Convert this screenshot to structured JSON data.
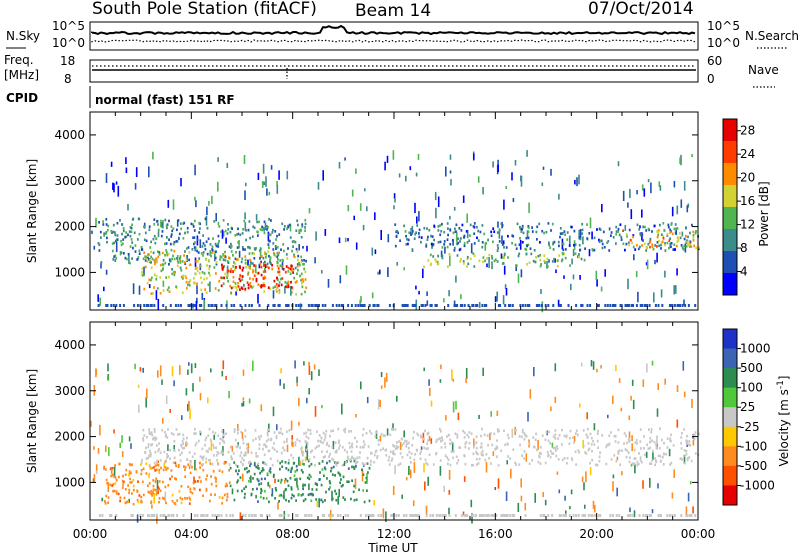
{
  "header": {
    "station": "South Pole Station (fitACF)",
    "beam": "Beam 14",
    "date": "07/Oct/2014",
    "cpid_label": "CPID",
    "cpid_value": "normal (fast) 151 RF"
  },
  "nsky_panel": {
    "left_label": "N.Sky",
    "right_label": "N.Search",
    "ticks": [
      "10^5",
      "10^0"
    ],
    "right_ticks": [
      "10^5",
      "10^0"
    ]
  },
  "freq_panel": {
    "left_label_line1": "Freq.",
    "left_label_line2": "[MHz]",
    "left_ticks": [
      "18",
      "8"
    ],
    "right_label": "Nave",
    "right_ticks": [
      "60",
      "0"
    ]
  },
  "chart_data": [
    {
      "type": "heatmap",
      "quantity": "Power",
      "ylabel": "Slant Range [km]",
      "xlabel": "",
      "x_range_hours": [
        0,
        24
      ],
      "ylim": [
        180,
        4500
      ],
      "yticks": [
        "1000",
        "2000",
        "3000",
        "4000"
      ],
      "colorbar_label": "Power [dB]",
      "colorbar_ticks": [
        "4",
        "8",
        "12",
        "16",
        "20",
        "24",
        "28"
      ],
      "colorbar_range": [
        0,
        30
      ],
      "colorscale": [
        "#0000ff",
        "#1e50b4",
        "#3c8c8c",
        "#50b450",
        "#d2d232",
        "#ff8c00",
        "#ff3c00",
        "#e60000"
      ],
      "regions": [
        {
          "t": [
            0.3,
            8.5
          ],
          "r": [
            1200,
            2200
          ],
          "value": 9
        },
        {
          "t": [
            2.0,
            8.5
          ],
          "r": [
            550,
            1500
          ],
          "value": 16
        },
        {
          "t": [
            5.0,
            8.0
          ],
          "r": [
            650,
            1200
          ],
          "value": 28
        },
        {
          "t": [
            12.0,
            24.0
          ],
          "r": [
            1500,
            2100
          ],
          "value": 8
        },
        {
          "t": [
            13.0,
            19.5
          ],
          "r": [
            1150,
            1450
          ],
          "value": 14
        },
        {
          "t": [
            21.0,
            24.0
          ],
          "r": [
            1550,
            1950
          ],
          "value": 18
        }
      ]
    },
    {
      "type": "heatmap",
      "quantity": "Velocity",
      "ylabel": "Slant Range [km]",
      "xlabel": "Time UT",
      "x_range_hours": [
        0,
        24
      ],
      "xticks": [
        "00:00",
        "04:00",
        "08:00",
        "12:00",
        "16:00",
        "20:00",
        "00:00"
      ],
      "ylim": [
        180,
        4500
      ],
      "yticks": [
        "1000",
        "2000",
        "3000",
        "4000"
      ],
      "colorbar_label": "Velocity [m s^-1]",
      "colorbar_ticks": [
        "1000",
        "500",
        "100",
        "25",
        "-25",
        "-100",
        "-500",
        "-1000"
      ],
      "colorscale": [
        "#1e32c8",
        "#3c64b4",
        "#2d8c50",
        "#50c83c",
        "#c8c8c8",
        "#ffc800",
        "#ff8c1e",
        "#ff5000",
        "#e60000"
      ],
      "regions": [
        {
          "t": [
            0.5,
            5.5
          ],
          "r": [
            550,
            1500
          ],
          "value": -300
        },
        {
          "t": [
            5.5,
            11.0
          ],
          "r": [
            600,
            1500
          ],
          "value": 300
        },
        {
          "t": [
            2.0,
            24.0
          ],
          "r": [
            1400,
            2200
          ],
          "value": 0
        }
      ]
    }
  ]
}
